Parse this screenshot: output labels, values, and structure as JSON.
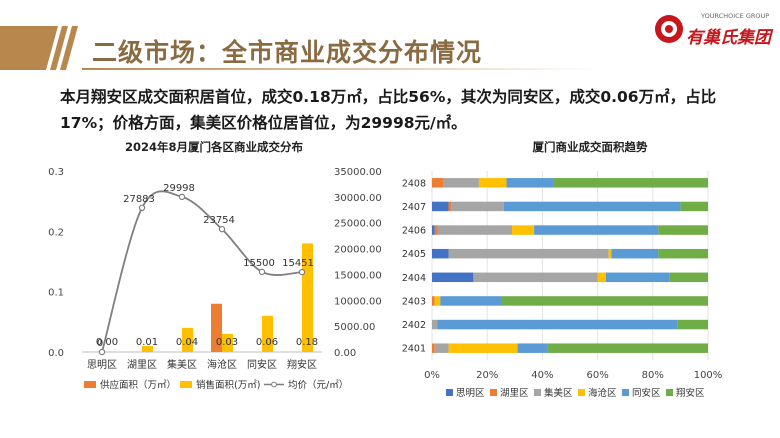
{
  "header": {
    "title": "二级市场：全市商业成交分布情况",
    "logo_en": "YOURCHOICE GROUP",
    "logo_cn": "有巢氏集团"
  },
  "summary": "本月翔安区成交面积居首位，成交0.18万㎡，占比56%，其次为同安区，成交0.06万㎡，占比17%；价格方面，集美区价格位居首位，为29998元/㎡。",
  "colors": {
    "title": "#8a6a40",
    "supply": "#ed7d31",
    "sales": "#ffc000",
    "price": "#7f7f7f",
    "siming": "#4472c4",
    "huli": "#ed7d31",
    "jimei": "#a5a5a5",
    "haicang": "#ffc000",
    "tongan": "#5b9bd5",
    "xiangan": "#70ad47"
  },
  "chart_data": [
    {
      "type": "bar",
      "title": "2024年8月厦门各区商业成交分布",
      "categories": [
        "思明区",
        "湖里区",
        "集美区",
        "海沧区",
        "同安区",
        "翔安区"
      ],
      "series": [
        {
          "name": "供应面积（万㎡）",
          "values": [
            0,
            0,
            0,
            0.08,
            0,
            0
          ],
          "axis": "left"
        },
        {
          "name": "销售面积(万㎡)",
          "values": [
            0,
            0.01,
            0.04,
            0.03,
            0.06,
            0.18
          ],
          "data_labels": [
            "0.00",
            "0.01",
            "0.04",
            "0.03",
            "0.06",
            "0.18"
          ],
          "axis": "left"
        },
        {
          "name": "均价（元/㎡）",
          "type": "line",
          "values": [
            0,
            27883,
            29998,
            23754,
            15500,
            15451
          ],
          "data_labels": [
            "0",
            "27883",
            "29998",
            "23754",
            "15500",
            "15451"
          ],
          "axis": "right"
        }
      ],
      "left_axis": {
        "ylim": [
          0,
          0.3
        ],
        "ticks": [
          "0.0",
          "0.1",
          "0.2",
          "0.3"
        ]
      },
      "right_axis": {
        "ylim": [
          0,
          35000
        ],
        "ticks": [
          "0.00",
          "5000.00",
          "10000.00",
          "15000.00",
          "20000.00",
          "25000.00",
          "30000.00",
          "35000.00"
        ]
      },
      "legend": "bottom"
    },
    {
      "type": "bar",
      "stacked": "percent",
      "orientation": "horizontal",
      "title": "厦门商业成交面积趋势",
      "categories": [
        "2408",
        "2407",
        "2406",
        "2405",
        "2404",
        "2403",
        "2402",
        "2401"
      ],
      "series": [
        {
          "name": "思明区",
          "values": [
            0,
            6,
            1,
            6,
            15,
            0,
            0,
            0
          ]
        },
        {
          "name": "湖里区",
          "values": [
            4,
            1,
            1,
            0,
            0,
            1,
            0,
            1
          ]
        },
        {
          "name": "集美区",
          "values": [
            13,
            19,
            27,
            58,
            45,
            0,
            2,
            5
          ]
        },
        {
          "name": "海沧区",
          "values": [
            10,
            0,
            8,
            1,
            3,
            2,
            0,
            25
          ]
        },
        {
          "name": "同安区",
          "values": [
            17,
            64,
            45,
            17,
            23,
            22,
            87,
            11
          ]
        },
        {
          "name": "翔安区",
          "values": [
            56,
            10,
            18,
            18,
            14,
            75,
            11,
            58
          ]
        }
      ],
      "xaxis": {
        "ticks": [
          "0%",
          "20%",
          "40%",
          "60%",
          "80%",
          "100%"
        ]
      },
      "legend": "bottom"
    }
  ]
}
